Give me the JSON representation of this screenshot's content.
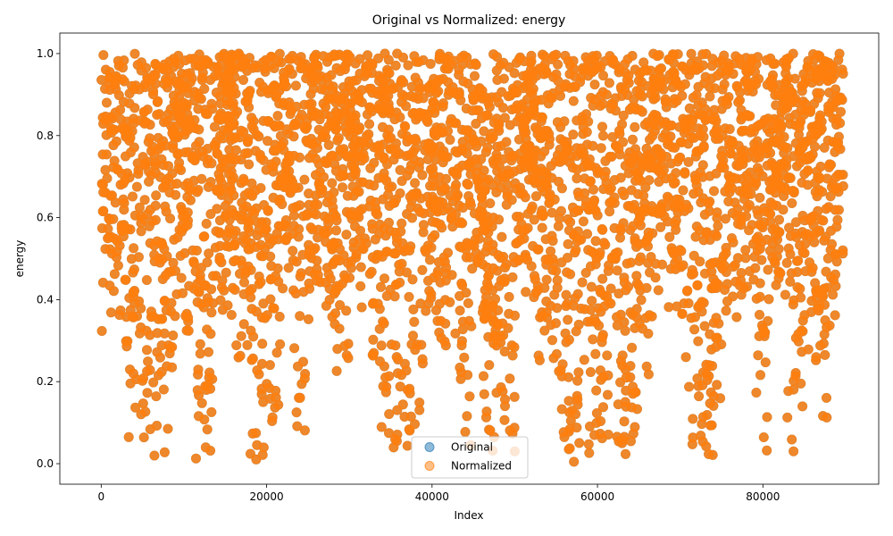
{
  "chart_data": {
    "type": "scatter",
    "title": "Original vs Normalized: energy",
    "xlabel": "Index",
    "ylabel": "energy",
    "xlim": [
      -5000,
      94000
    ],
    "ylim": [
      -0.05,
      1.05
    ],
    "xticks": [
      0,
      20000,
      40000,
      60000,
      80000
    ],
    "xtick_labels": [
      "0",
      "20000",
      "40000",
      "60000",
      "80000"
    ],
    "yticks": [
      0.0,
      0.2,
      0.4,
      0.6,
      0.8,
      1.0
    ],
    "ytick_labels": [
      "0.0",
      "0.2",
      "0.4",
      "0.6",
      "0.8",
      "1.0"
    ],
    "grid": false,
    "legend_position": "lower center",
    "n_points": 89740,
    "y_range": [
      0.0,
      1.0
    ],
    "series": [
      {
        "name": "Original",
        "color": "#1f77b4",
        "alpha": 0.5
      },
      {
        "name": "Normalized",
        "color": "#ff7f0e",
        "alpha": 0.5
      }
    ]
  }
}
